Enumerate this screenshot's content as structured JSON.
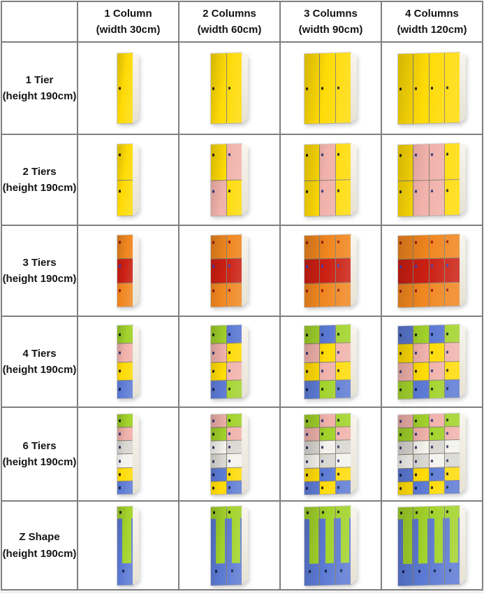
{
  "page": {
    "background": "#ffffff",
    "grid_line_color": "#7f7f7f"
  },
  "header": {
    "corner_label": "",
    "columns": [
      {
        "line1": "1 Column",
        "line2": "(width 30cm)"
      },
      {
        "line1": "2 Columns",
        "line2": "(width 60cm)"
      },
      {
        "line1": "3 Columns",
        "line2": "(width 90cm)"
      },
      {
        "line1": "4 Columns",
        "line2": "(width 120cm)"
      }
    ]
  },
  "door_colors": {
    "yellow": {
      "hex": "#FFDB06",
      "lock": "#26221a"
    },
    "pink": {
      "hex": "#F1B2AB",
      "lock": "#333a80"
    },
    "orange": {
      "hex": "#F0861F",
      "lock": "#9e130e"
    },
    "red": {
      "hex": "#CB1F12",
      "lock": "#3c3cc0"
    },
    "green": {
      "hex": "#A2D32B",
      "lock": "#18240e"
    },
    "blue": {
      "hex": "#5B79D3",
      "lock": "#121b44"
    },
    "white": {
      "hex": "#F3F2ED",
      "lock": "#39396e"
    },
    "gray": {
      "hex": "#D8D7D2",
      "lock": "#39396e"
    }
  },
  "rows": [
    {
      "label_line1": "1 Tier",
      "label_line2": "(height 190cm)",
      "tiers": 1,
      "cells": [
        {
          "type": "grid",
          "columns": 1,
          "doors": [
            [
              "yellow"
            ]
          ]
        },
        {
          "type": "grid",
          "columns": 2,
          "doors": [
            [
              "yellow",
              "yellow"
            ]
          ]
        },
        {
          "type": "grid",
          "columns": 3,
          "doors": [
            [
              "yellow",
              "yellow",
              "yellow"
            ]
          ]
        },
        {
          "type": "grid",
          "columns": 4,
          "doors": [
            [
              "yellow",
              "yellow",
              "yellow",
              "yellow"
            ]
          ]
        }
      ]
    },
    {
      "label_line1": "2 Tiers",
      "label_line2": "(height 190cm)",
      "tiers": 2,
      "cells": [
        {
          "type": "grid",
          "columns": 1,
          "doors": [
            [
              "yellow"
            ],
            [
              "yellow"
            ]
          ]
        },
        {
          "type": "grid",
          "columns": 2,
          "doors": [
            [
              "yellow",
              "pink"
            ],
            [
              "pink",
              "yellow"
            ]
          ]
        },
        {
          "type": "grid",
          "columns": 3,
          "doors": [
            [
              "yellow",
              "pink",
              "yellow"
            ],
            [
              "yellow",
              "pink",
              "yellow"
            ]
          ]
        },
        {
          "type": "grid",
          "columns": 4,
          "doors": [
            [
              "yellow",
              "pink",
              "pink",
              "yellow"
            ],
            [
              "yellow",
              "pink",
              "pink",
              "yellow"
            ]
          ]
        }
      ]
    },
    {
      "label_line1": "3 Tiers",
      "label_line2": "(height 190cm)",
      "tiers": 3,
      "cells": [
        {
          "type": "grid",
          "columns": 1,
          "doors": [
            [
              "orange"
            ],
            [
              "red"
            ],
            [
              "orange"
            ]
          ]
        },
        {
          "type": "grid",
          "columns": 2,
          "doors": [
            [
              "orange",
              "orange"
            ],
            [
              "red",
              "red"
            ],
            [
              "orange",
              "orange"
            ]
          ]
        },
        {
          "type": "grid",
          "columns": 3,
          "doors": [
            [
              "orange",
              "orange",
              "orange"
            ],
            [
              "red",
              "red",
              "red"
            ],
            [
              "orange",
              "orange",
              "orange"
            ]
          ]
        },
        {
          "type": "grid",
          "columns": 4,
          "doors": [
            [
              "orange",
              "orange",
              "orange",
              "orange"
            ],
            [
              "red",
              "red",
              "red",
              "red"
            ],
            [
              "orange",
              "orange",
              "orange",
              "orange"
            ]
          ]
        }
      ]
    },
    {
      "label_line1": "4 Tiers",
      "label_line2": "(height 190cm)",
      "tiers": 4,
      "cells": [
        {
          "type": "grid",
          "columns": 1,
          "doors": [
            [
              "green"
            ],
            [
              "pink"
            ],
            [
              "yellow"
            ],
            [
              "blue"
            ]
          ]
        },
        {
          "type": "grid",
          "columns": 2,
          "doors": [
            [
              "green",
              "blue"
            ],
            [
              "pink",
              "yellow"
            ],
            [
              "yellow",
              "pink"
            ],
            [
              "blue",
              "green"
            ]
          ]
        },
        {
          "type": "grid",
          "columns": 3,
          "doors": [
            [
              "green",
              "blue",
              "green"
            ],
            [
              "pink",
              "yellow",
              "pink"
            ],
            [
              "yellow",
              "pink",
              "yellow"
            ],
            [
              "blue",
              "green",
              "blue"
            ]
          ]
        },
        {
          "type": "grid",
          "columns": 4,
          "doors": [
            [
              "blue",
              "green",
              "blue",
              "green"
            ],
            [
              "yellow",
              "pink",
              "yellow",
              "pink"
            ],
            [
              "pink",
              "yellow",
              "pink",
              "yellow"
            ],
            [
              "green",
              "blue",
              "green",
              "blue"
            ]
          ]
        }
      ]
    },
    {
      "label_line1": "6 Tiers",
      "label_line2": "(height 190cm)",
      "tiers": 6,
      "cells": [
        {
          "type": "grid",
          "columns": 1,
          "doors": [
            [
              "green"
            ],
            [
              "pink"
            ],
            [
              "gray"
            ],
            [
              "white"
            ],
            [
              "yellow"
            ],
            [
              "blue"
            ]
          ]
        },
        {
          "type": "grid",
          "columns": 2,
          "doors": [
            [
              "pink",
              "green"
            ],
            [
              "green",
              "pink"
            ],
            [
              "white",
              "gray"
            ],
            [
              "gray",
              "white"
            ],
            [
              "blue",
              "yellow"
            ],
            [
              "yellow",
              "blue"
            ]
          ]
        },
        {
          "type": "grid",
          "columns": 3,
          "doors": [
            [
              "green",
              "pink",
              "green"
            ],
            [
              "pink",
              "green",
              "pink"
            ],
            [
              "gray",
              "white",
              "gray"
            ],
            [
              "white",
              "gray",
              "white"
            ],
            [
              "yellow",
              "blue",
              "yellow"
            ],
            [
              "blue",
              "yellow",
              "blue"
            ]
          ]
        },
        {
          "type": "grid",
          "columns": 4,
          "doors": [
            [
              "pink",
              "green",
              "pink",
              "green"
            ],
            [
              "green",
              "pink",
              "green",
              "pink"
            ],
            [
              "gray",
              "white",
              "gray",
              "white"
            ],
            [
              "white",
              "gray",
              "white",
              "gray"
            ],
            [
              "blue",
              "yellow",
              "blue",
              "yellow"
            ],
            [
              "yellow",
              "blue",
              "yellow",
              "blue"
            ]
          ]
        }
      ]
    },
    {
      "label_line1": "Z Shape",
      "label_line2": "(height 190cm)",
      "tiers": "Z",
      "cells": [
        {
          "type": "z",
          "columns": 1,
          "top_color": "green",
          "bottom_color": "blue"
        },
        {
          "type": "z",
          "columns": 2,
          "top_color": "green",
          "bottom_color": "blue"
        },
        {
          "type": "z",
          "columns": 3,
          "top_color": "green",
          "bottom_color": "blue"
        },
        {
          "type": "z",
          "columns": 4,
          "top_color": "green",
          "bottom_color": "blue"
        }
      ]
    }
  ]
}
